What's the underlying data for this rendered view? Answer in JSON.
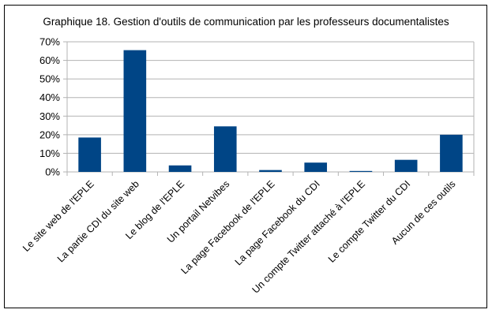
{
  "chart_data": {
    "type": "bar",
    "title": "Graphique 18. Gestion d'outils de communication par les professeurs documentalistes",
    "categories": [
      "Le site web de l'EPLE",
      "La partie CDI du site web",
      "Le blog de l'EPLE",
      "Un portail Netvibes",
      "La page Facebook de l'EPLE",
      "La page Facebook du CDI",
      "Un compte Twitter attaché à l'EPLE",
      "Le compte Twitter du CDI",
      "Aucun de ces outils"
    ],
    "values": [
      18.5,
      65.5,
      3.5,
      24.5,
      1.0,
      5.0,
      0.5,
      6.5,
      20.0
    ],
    "ylim": [
      0,
      70
    ],
    "yticks": [
      "0%",
      "10%",
      "20%",
      "30%",
      "40%",
      "50%",
      "60%",
      "70%"
    ],
    "xlabel": "",
    "ylabel": "",
    "bar_color": "#004586",
    "grid": true
  }
}
